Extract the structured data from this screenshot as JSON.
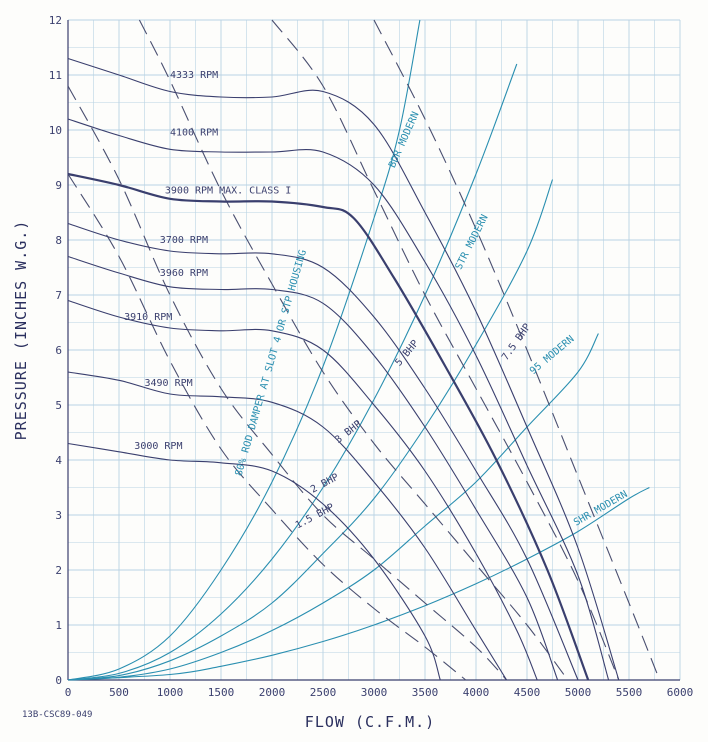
{
  "drawing_number": "13B-CSC89-049",
  "chart_data": {
    "type": "line",
    "title": "",
    "xlabel": "FLOW (C.F.M.)",
    "ylabel": "PRESSURE (INCHES W.G.)",
    "xlim": [
      0,
      6000
    ],
    "ylim": [
      0,
      12
    ],
    "xticks": [
      0,
      500,
      1000,
      1500,
      2000,
      2500,
      3000,
      3500,
      4000,
      4500,
      5000,
      5500,
      6000
    ],
    "yticks": [
      0,
      1,
      2,
      3,
      4,
      5,
      6,
      7,
      8,
      9,
      10,
      11,
      12
    ],
    "grid": true,
    "series": [
      {
        "name": "3000 RPM",
        "kind": "rpm",
        "points": [
          [
            0,
            4.3
          ],
          [
            500,
            4.15
          ],
          [
            1000,
            4.0
          ],
          [
            1500,
            3.95
          ],
          [
            2000,
            3.8
          ],
          [
            2500,
            3.2
          ],
          [
            3000,
            2.2
          ],
          [
            3500,
            0.8
          ],
          [
            3650,
            0
          ]
        ]
      },
      {
        "name": "3490 RPM",
        "kind": "rpm",
        "points": [
          [
            0,
            5.6
          ],
          [
            500,
            5.45
          ],
          [
            1000,
            5.2
          ],
          [
            1500,
            5.15
          ],
          [
            2000,
            5.05
          ],
          [
            2500,
            4.6
          ],
          [
            3000,
            3.6
          ],
          [
            3500,
            2.4
          ],
          [
            4000,
            0.9
          ],
          [
            4300,
            0
          ]
        ]
      },
      {
        "name": "3910 RPM",
        "kind": "rpm",
        "points": [
          [
            0,
            6.9
          ],
          [
            500,
            6.6
          ],
          [
            1000,
            6.4
          ],
          [
            1500,
            6.35
          ],
          [
            2000,
            6.35
          ],
          [
            2500,
            6.0
          ],
          [
            3000,
            5.0
          ],
          [
            3500,
            3.8
          ],
          [
            4000,
            2.3
          ],
          [
            4400,
            0.9
          ],
          [
            4600,
            0
          ]
        ]
      },
      {
        "name": "3960 RPM",
        "kind": "rpm",
        "points": [
          [
            0,
            7.7
          ],
          [
            500,
            7.4
          ],
          [
            1000,
            7.15
          ],
          [
            1500,
            7.1
          ],
          [
            2000,
            7.1
          ],
          [
            2500,
            6.85
          ],
          [
            3000,
            5.9
          ],
          [
            3500,
            4.6
          ],
          [
            4000,
            3.1
          ],
          [
            4500,
            1.5
          ],
          [
            4800,
            0
          ]
        ]
      },
      {
        "name": "3700 RPM",
        "kind": "rpm",
        "points": [
          [
            0,
            8.3
          ],
          [
            500,
            8.0
          ],
          [
            1000,
            7.8
          ],
          [
            1500,
            7.75
          ],
          [
            2000,
            7.75
          ],
          [
            2500,
            7.5
          ],
          [
            3000,
            6.6
          ],
          [
            3500,
            5.3
          ],
          [
            4000,
            3.8
          ],
          [
            4500,
            2.2
          ],
          [
            5000,
            0
          ]
        ]
      },
      {
        "name": "3900 RPM MAX. CLASS I",
        "kind": "rpm",
        "points": [
          [
            0,
            9.2
          ],
          [
            500,
            9.0
          ],
          [
            1000,
            8.75
          ],
          [
            1500,
            8.7
          ],
          [
            2000,
            8.7
          ],
          [
            2500,
            8.6
          ],
          [
            2800,
            8.4
          ],
          [
            3200,
            7.3
          ],
          [
            3700,
            5.7
          ],
          [
            4200,
            4.0
          ],
          [
            4700,
            2.0
          ],
          [
            5100,
            0
          ]
        ]
      },
      {
        "name": "4100 RPM",
        "kind": "rpm",
        "points": [
          [
            0,
            10.2
          ],
          [
            500,
            9.9
          ],
          [
            1000,
            9.65
          ],
          [
            1500,
            9.6
          ],
          [
            2000,
            9.6
          ],
          [
            2500,
            9.6
          ],
          [
            3000,
            9.0
          ],
          [
            3500,
            7.6
          ],
          [
            4000,
            5.9
          ],
          [
            4500,
            3.9
          ],
          [
            5000,
            1.9
          ],
          [
            5300,
            0
          ]
        ]
      },
      {
        "name": "4333 RPM",
        "kind": "rpm",
        "points": [
          [
            0,
            11.3
          ],
          [
            500,
            11.0
          ],
          [
            1000,
            10.7
          ],
          [
            1500,
            10.6
          ],
          [
            2000,
            10.6
          ],
          [
            2500,
            10.7
          ],
          [
            3000,
            10.1
          ],
          [
            3500,
            8.5
          ],
          [
            4000,
            6.7
          ],
          [
            4500,
            4.6
          ],
          [
            5000,
            2.4
          ],
          [
            5400,
            0
          ]
        ]
      },
      {
        "name": "1.5 BHP",
        "kind": "bhp",
        "points": [
          [
            0,
            9.2
          ],
          [
            500,
            7.7
          ],
          [
            1000,
            5.8
          ],
          [
            1500,
            4.2
          ],
          [
            2000,
            3.1
          ],
          [
            2500,
            2.1
          ],
          [
            3000,
            1.3
          ],
          [
            3500,
            0.6
          ],
          [
            3900,
            0
          ]
        ]
      },
      {
        "name": "2 BHP",
        "kind": "bhp",
        "points": [
          [
            0,
            10.8
          ],
          [
            500,
            9.1
          ],
          [
            1000,
            7.0
          ],
          [
            1500,
            5.3
          ],
          [
            2000,
            4.1
          ],
          [
            2500,
            3.0
          ],
          [
            3000,
            2.2
          ],
          [
            3500,
            1.4
          ],
          [
            4000,
            0.6
          ],
          [
            4300,
            0
          ]
        ]
      },
      {
        "name": "3 BHP",
        "kind": "bhp",
        "points": [
          [
            700,
            12
          ],
          [
            1000,
            10.9
          ],
          [
            1500,
            8.9
          ],
          [
            2000,
            7.2
          ],
          [
            2500,
            5.6
          ],
          [
            3000,
            4.3
          ],
          [
            3500,
            3.2
          ],
          [
            4000,
            2.1
          ],
          [
            4500,
            1.0
          ],
          [
            4900,
            0
          ]
        ]
      },
      {
        "name": "5 BHP",
        "kind": "bhp",
        "points": [
          [
            2000,
            12
          ],
          [
            2500,
            10.8
          ],
          [
            3000,
            8.9
          ],
          [
            3500,
            7.0
          ],
          [
            4000,
            5.3
          ],
          [
            4500,
            3.6
          ],
          [
            5000,
            1.8
          ],
          [
            5400,
            0
          ]
        ]
      },
      {
        "name": "7.5 BHP",
        "kind": "bhp",
        "points": [
          [
            3000,
            12
          ],
          [
            3500,
            10.2
          ],
          [
            4000,
            8.2
          ],
          [
            4500,
            6.0
          ],
          [
            5000,
            3.7
          ],
          [
            5500,
            1.4
          ],
          [
            5800,
            0
          ]
        ]
      },
      {
        "name": "80% ROD DAMPER AT SLOT 4 OR STP HOUSING",
        "kind": "system",
        "points": [
          [
            0,
            0
          ],
          [
            500,
            0.2
          ],
          [
            1000,
            0.8
          ],
          [
            1500,
            2.0
          ],
          [
            2000,
            3.6
          ],
          [
            2500,
            5.7
          ],
          [
            3000,
            8.4
          ],
          [
            3250,
            10
          ],
          [
            3450,
            12
          ]
        ]
      },
      {
        "name": "BDR MODERN",
        "kind": "system",
        "points": [
          [
            0,
            0
          ],
          [
            500,
            0.12
          ],
          [
            1000,
            0.5
          ],
          [
            1500,
            1.2
          ],
          [
            2000,
            2.2
          ],
          [
            2500,
            3.5
          ],
          [
            3000,
            5.1
          ],
          [
            3500,
            7.0
          ],
          [
            4000,
            9.2
          ],
          [
            4400,
            11.2
          ]
        ]
      },
      {
        "name": "STR MODERN",
        "kind": "system",
        "points": [
          [
            0,
            0
          ],
          [
            500,
            0.08
          ],
          [
            1000,
            0.35
          ],
          [
            1500,
            0.8
          ],
          [
            2000,
            1.4
          ],
          [
            2500,
            2.3
          ],
          [
            3000,
            3.3
          ],
          [
            3500,
            4.6
          ],
          [
            4000,
            6.1
          ],
          [
            4500,
            7.8
          ],
          [
            4750,
            9.1
          ]
        ]
      },
      {
        "name": "95 MODERN",
        "kind": "system",
        "points": [
          [
            0,
            0
          ],
          [
            500,
            0.05
          ],
          [
            1000,
            0.2
          ],
          [
            1500,
            0.5
          ],
          [
            2000,
            0.9
          ],
          [
            2500,
            1.4
          ],
          [
            3000,
            2.0
          ],
          [
            3500,
            2.8
          ],
          [
            4000,
            3.6
          ],
          [
            4500,
            4.6
          ],
          [
            5000,
            5.6
          ],
          [
            5200,
            6.3
          ]
        ]
      },
      {
        "name": "SHR MODERN",
        "kind": "system",
        "points": [
          [
            0,
            0
          ],
          [
            1000,
            0.1
          ],
          [
            1500,
            0.25
          ],
          [
            2000,
            0.45
          ],
          [
            2500,
            0.7
          ],
          [
            3000,
            1.0
          ],
          [
            3500,
            1.35
          ],
          [
            4000,
            1.75
          ],
          [
            4500,
            2.2
          ],
          [
            5000,
            2.7
          ],
          [
            5500,
            3.3
          ],
          [
            5700,
            3.5
          ]
        ]
      }
    ],
    "labels": [
      {
        "text": "4333 RPM",
        "x": 1000,
        "y": 10.95,
        "kind": "rpm"
      },
      {
        "text": "4100 RPM",
        "x": 1000,
        "y": 9.9,
        "kind": "rpm"
      },
      {
        "text": "3900 RPM MAX. CLASS I",
        "x": 950,
        "y": 8.85,
        "kind": "rpm"
      },
      {
        "text": "3700 RPM",
        "x": 900,
        "y": 7.95,
        "kind": "rpm"
      },
      {
        "text": "3960 RPM",
        "x": 900,
        "y": 7.35,
        "kind": "rpm"
      },
      {
        "text": "3910 RPM",
        "x": 550,
        "y": 6.55,
        "kind": "rpm"
      },
      {
        "text": "3490 RPM",
        "x": 750,
        "y": 5.35,
        "kind": "rpm"
      },
      {
        "text": "3000 RPM",
        "x": 650,
        "y": 4.2,
        "kind": "rpm"
      },
      {
        "text": "1.5 BHP",
        "x": 2250,
        "y": 2.75,
        "kind": "bhp",
        "angle": -28
      },
      {
        "text": "2 BHP",
        "x": 2400,
        "y": 3.4,
        "kind": "bhp",
        "angle": -28
      },
      {
        "text": "3 BHP",
        "x": 2650,
        "y": 4.3,
        "kind": "bhp",
        "angle": -38
      },
      {
        "text": "5 BHP",
        "x": 3250,
        "y": 5.7,
        "kind": "bhp",
        "angle": -50
      },
      {
        "text": "7.5 BHP",
        "x": 4300,
        "y": 5.8,
        "kind": "bhp",
        "angle": -55
      }
    ],
    "system_labels": [
      {
        "text": "80% ROD DAMPER AT SLOT 4 OR STP HOUSING",
        "x": 1700,
        "y": 3.7,
        "angle": -74
      },
      {
        "text": "BDR MODERN",
        "x": 3200,
        "y": 9.3,
        "angle": -66
      },
      {
        "text": "STR MODERN",
        "x": 3850,
        "y": 7.45,
        "angle": -63
      },
      {
        "text": "95 MODERN",
        "x": 4560,
        "y": 5.55,
        "angle": -40
      },
      {
        "text": "SHR MODERN",
        "x": 4980,
        "y": 2.8,
        "angle": -30
      }
    ],
    "colors": {
      "rpm": "#3a3f6e",
      "bhp": "#4a4f70",
      "system": "#2a8fb0",
      "grid": "#b9d3e4",
      "axis": "#3a3f6e"
    }
  }
}
